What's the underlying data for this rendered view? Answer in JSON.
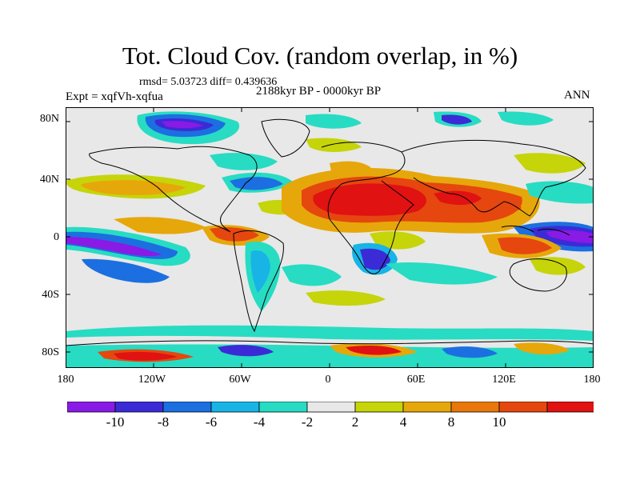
{
  "title": "Tot. Cloud Cov. (random overlap, in %)",
  "stats": "rmsd= 5.03723 diff= 0.439636",
  "experiment": "Expt = xqfVh-xqfua",
  "period": "2188kyr BP - 0000kyr BP",
  "season": "ANN",
  "y_ticks": [
    "80N",
    "40N",
    "0",
    "40S",
    "80S"
  ],
  "x_ticks": [
    "180",
    "120W",
    "60W",
    "0",
    "60E",
    "120E",
    "180"
  ],
  "colorbar": {
    "labels": [
      "-10",
      "-8",
      "-6",
      "-4",
      "-2",
      "2",
      "4",
      "8",
      "10"
    ],
    "colors": [
      "#8a1ae6",
      "#3b2bd6",
      "#1c6fe0",
      "#18b4e6",
      "#27dcc3",
      "#e8e8e8",
      "#c6d40a",
      "#e6a70a",
      "#e8780b",
      "#e5470f",
      "#e01212"
    ]
  },
  "map_background": "#e8e8e8"
}
